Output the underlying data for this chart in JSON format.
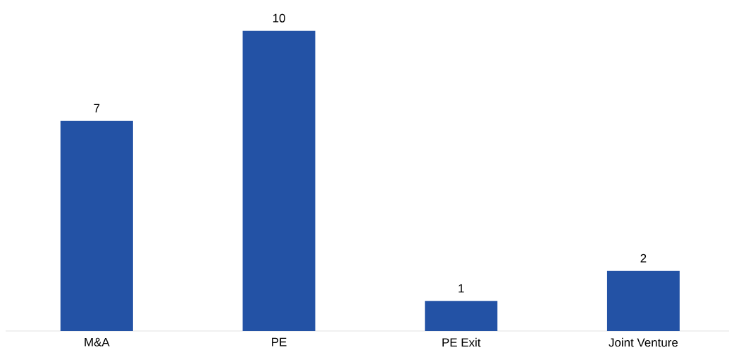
{
  "chart_data": {
    "type": "bar",
    "categories": [
      "M&A",
      "PE",
      "PE Exit",
      "Joint Venture"
    ],
    "values": [
      7,
      10,
      1,
      2
    ],
    "color": "#2352a5",
    "data_labels": true
  }
}
